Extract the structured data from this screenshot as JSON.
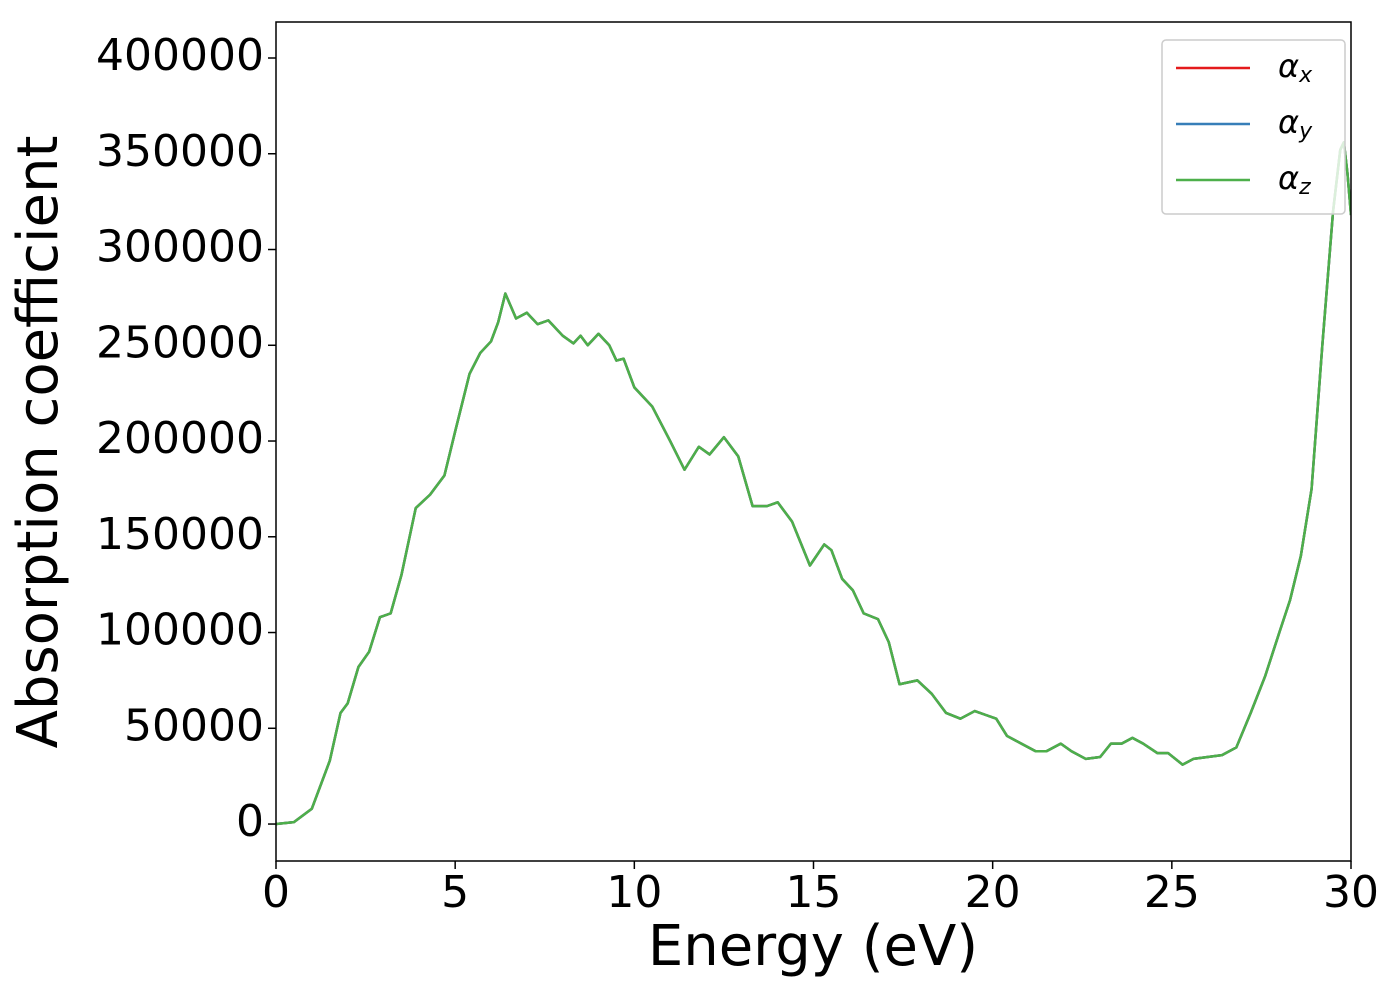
{
  "chart_data": {
    "type": "line",
    "xlabel": "Energy (eV)",
    "ylabel": "Absorption coefficient",
    "x": [
      0,
      0.5,
      1.0,
      1.5,
      1.8,
      2.0,
      2.3,
      2.6,
      2.9,
      3.2,
      3.5,
      3.9,
      4.3,
      4.7,
      5.0,
      5.4,
      5.7,
      6.0,
      6.2,
      6.4,
      6.7,
      7.0,
      7.3,
      7.6,
      8.0,
      8.3,
      8.5,
      8.7,
      9.0,
      9.3,
      9.5,
      9.7,
      10.0,
      10.5,
      11.0,
      11.4,
      11.8,
      12.1,
      12.5,
      12.9,
      13.3,
      13.7,
      14.0,
      14.4,
      14.9,
      15.3,
      15.5,
      15.8,
      16.1,
      16.4,
      16.8,
      17.1,
      17.4,
      17.9,
      18.3,
      18.7,
      19.1,
      19.5,
      19.8,
      20.1,
      20.4,
      20.8,
      21.2,
      21.5,
      21.9,
      22.2,
      22.6,
      23.0,
      23.3,
      23.6,
      23.9,
      24.2,
      24.6,
      24.9,
      25.3,
      25.6,
      26.0,
      26.4,
      26.8,
      27.2,
      27.6,
      28.0,
      28.3,
      28.6,
      28.9,
      29.2,
      29.5,
      29.7,
      29.8,
      29.9,
      30.0
    ],
    "series": [
      {
        "name": "αx",
        "color": "#e41a1c",
        "values": [
          0,
          1000,
          8000,
          33000,
          58000,
          63000,
          82000,
          90000,
          108000,
          110000,
          130000,
          165000,
          172000,
          182000,
          205000,
          235000,
          246000,
          252000,
          262000,
          277000,
          264000,
          267000,
          261000,
          263000,
          255000,
          251000,
          255000,
          250000,
          256000,
          250000,
          242000,
          243000,
          228000,
          218000,
          200000,
          185000,
          197000,
          193000,
          202000,
          192000,
          166000,
          166000,
          168000,
          158000,
          135000,
          146000,
          143000,
          128000,
          122000,
          110000,
          107000,
          95000,
          73000,
          75000,
          68000,
          58000,
          55000,
          59000,
          57000,
          55000,
          46000,
          42000,
          38000,
          38000,
          42000,
          38000,
          34000,
          35000,
          42000,
          42000,
          45000,
          42000,
          37000,
          37000,
          31000,
          34000,
          35000,
          36000,
          40000,
          58000,
          77000,
          100000,
          117000,
          140000,
          175000,
          250000,
          320000,
          352000,
          356000,
          340000,
          318000
        ]
      },
      {
        "name": "αy",
        "color": "#377eb8",
        "values": [
          0,
          1000,
          8000,
          33000,
          58000,
          63000,
          82000,
          90000,
          108000,
          110000,
          130000,
          165000,
          172000,
          182000,
          205000,
          235000,
          246000,
          252000,
          262000,
          277000,
          264000,
          267000,
          261000,
          263000,
          255000,
          251000,
          255000,
          250000,
          256000,
          250000,
          242000,
          243000,
          228000,
          218000,
          200000,
          185000,
          197000,
          193000,
          202000,
          192000,
          166000,
          166000,
          168000,
          158000,
          135000,
          146000,
          143000,
          128000,
          122000,
          110000,
          107000,
          95000,
          73000,
          75000,
          68000,
          58000,
          55000,
          59000,
          57000,
          55000,
          46000,
          42000,
          38000,
          38000,
          42000,
          38000,
          34000,
          35000,
          42000,
          42000,
          45000,
          42000,
          37000,
          37000,
          31000,
          34000,
          35000,
          36000,
          40000,
          58000,
          77000,
          100000,
          117000,
          140000,
          175000,
          250000,
          320000,
          352000,
          356000,
          340000,
          318000
        ]
      },
      {
        "name": "αz",
        "color": "#4daf4a",
        "values": [
          0,
          1000,
          8000,
          33000,
          58000,
          63000,
          82000,
          90000,
          108000,
          110000,
          130000,
          165000,
          172000,
          182000,
          205000,
          235000,
          246000,
          252000,
          262000,
          277000,
          264000,
          267000,
          261000,
          263000,
          255000,
          251000,
          255000,
          250000,
          256000,
          250000,
          242000,
          243000,
          228000,
          218000,
          200000,
          185000,
          197000,
          193000,
          202000,
          192000,
          166000,
          166000,
          168000,
          158000,
          135000,
          146000,
          143000,
          128000,
          122000,
          110000,
          107000,
          95000,
          73000,
          75000,
          68000,
          58000,
          55000,
          59000,
          57000,
          55000,
          46000,
          42000,
          38000,
          38000,
          42000,
          38000,
          34000,
          35000,
          42000,
          42000,
          45000,
          42000,
          37000,
          37000,
          31000,
          34000,
          35000,
          36000,
          40000,
          58000,
          77000,
          100000,
          117000,
          140000,
          175000,
          250000,
          320000,
          352000,
          356000,
          340000,
          318000
        ]
      }
    ],
    "xlim": [
      0,
      30
    ],
    "xticks": [
      0,
      5,
      10,
      15,
      20,
      25,
      30
    ],
    "ylim": [
      -19300,
      418800
    ],
    "yticks": [
      0,
      50000,
      100000,
      150000,
      200000,
      250000,
      300000,
      350000,
      400000
    ],
    "legend": "upper right",
    "grid": false
  }
}
